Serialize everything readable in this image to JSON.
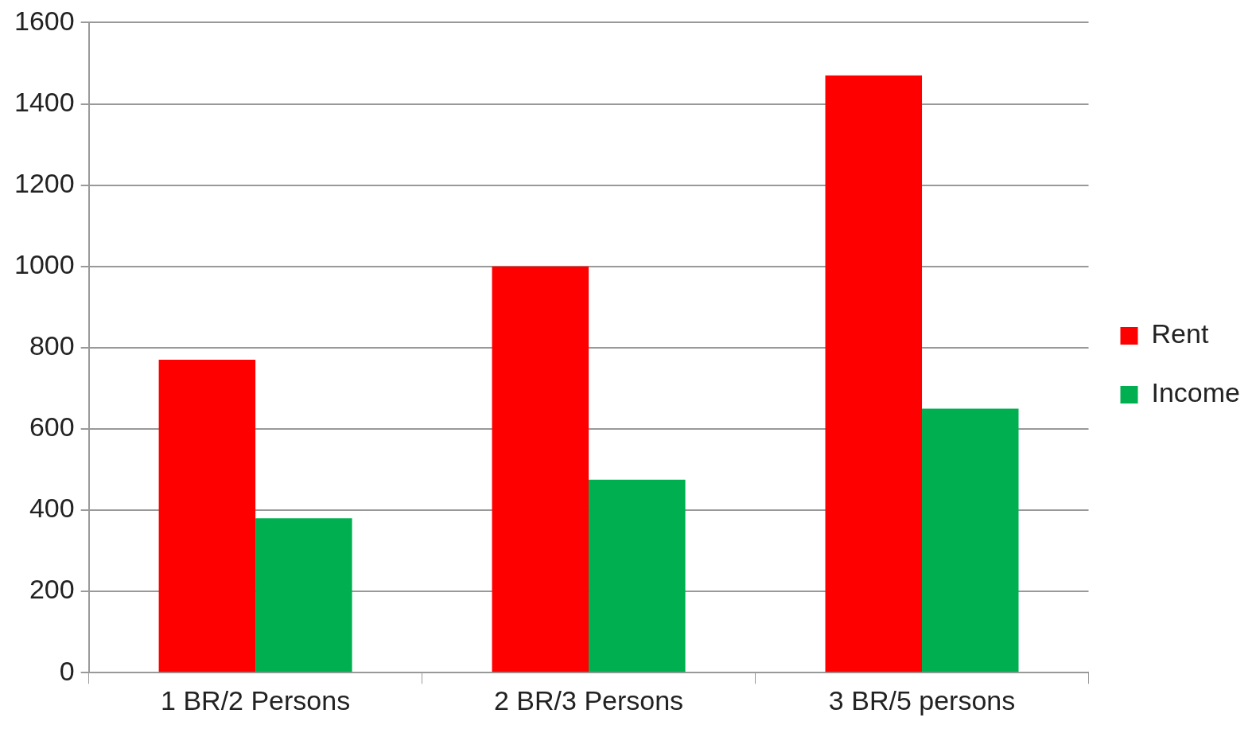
{
  "chart_data": {
    "type": "bar",
    "categories": [
      "1 BR/2 Persons",
      "2 BR/3 Persons",
      "3 BR/5 persons"
    ],
    "series": [
      {
        "name": "Rent",
        "color": "#ff0000",
        "values": [
          770,
          1000,
          1470
        ]
      },
      {
        "name": "Income",
        "color": "#00b050",
        "values": [
          380,
          475,
          650
        ]
      }
    ],
    "ylim": [
      0,
      1600
    ],
    "yticks": [
      0,
      200,
      400,
      600,
      800,
      1000,
      1200,
      1400,
      1600
    ],
    "grid": "y",
    "legend": "right"
  }
}
